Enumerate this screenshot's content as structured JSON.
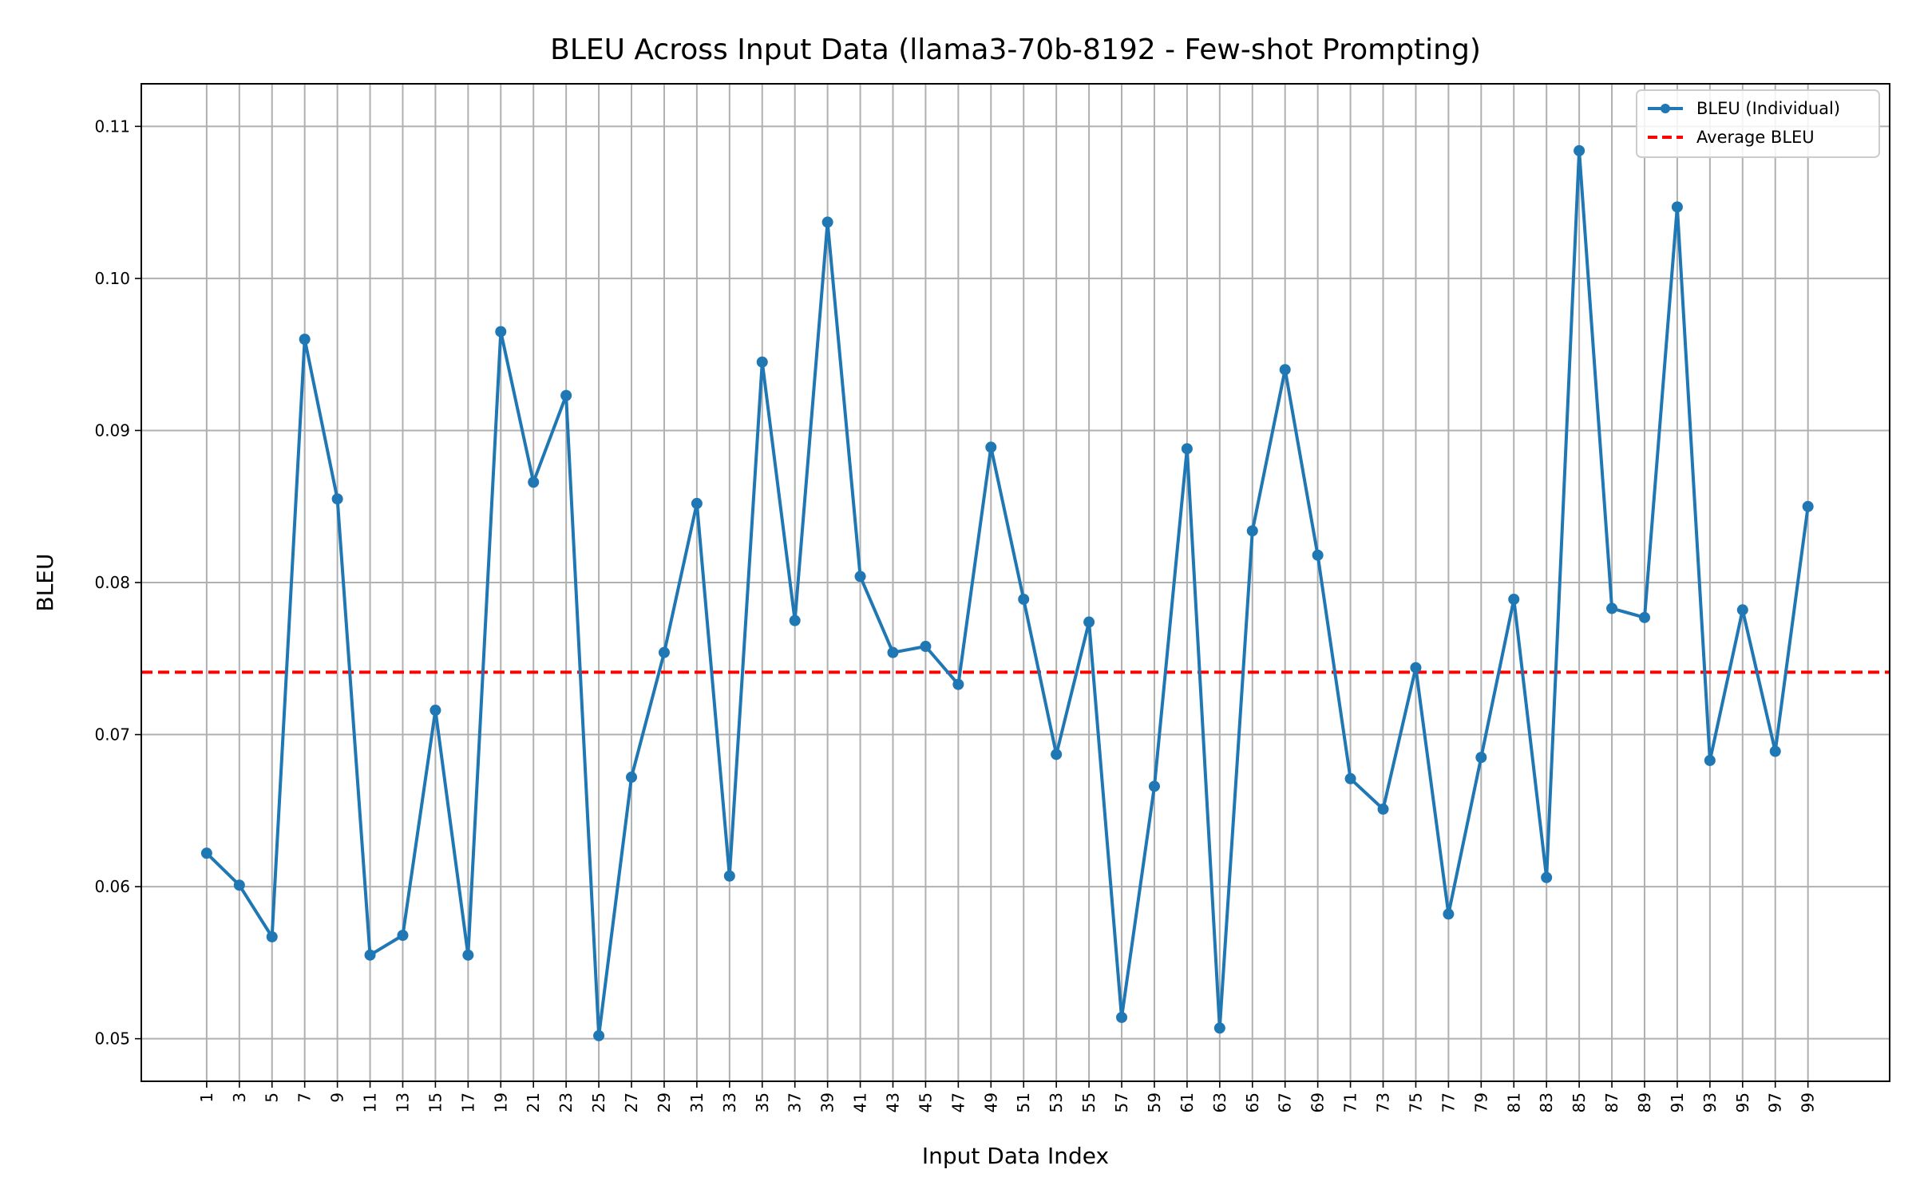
{
  "chart_data": {
    "type": "line",
    "title": "BLEU Across Input Data (llama3-70b-8192 - Few-shot Prompting)",
    "xlabel": "Input Data Index",
    "ylabel": "BLEU",
    "x": [
      1,
      3,
      5,
      7,
      9,
      11,
      13,
      15,
      17,
      19,
      21,
      23,
      25,
      27,
      29,
      31,
      33,
      35,
      37,
      39,
      41,
      43,
      45,
      47,
      49,
      51,
      53,
      55,
      57,
      59,
      61,
      63,
      65,
      67,
      69,
      71,
      73,
      75,
      77,
      79,
      81,
      83,
      85,
      87,
      89,
      91,
      93,
      95,
      97,
      99
    ],
    "xlim": [
      -3,
      104
    ],
    "ylim": [
      0.0472,
      0.1128
    ],
    "yticks": [
      0.05,
      0.06,
      0.07,
      0.08,
      0.09,
      0.1,
      0.11
    ],
    "ytick_labels": [
      "0.05",
      "0.06",
      "0.07",
      "0.08",
      "0.09",
      "0.10",
      "0.11"
    ],
    "grid": true,
    "legend_position": "top-right",
    "series": [
      {
        "name": "BLEU (Individual)",
        "color": "#1f77b4",
        "style": "solid-with-markers",
        "values": [
          0.0622,
          0.0601,
          0.0567,
          0.096,
          0.0855,
          0.0555,
          0.0568,
          0.0716,
          0.0555,
          0.0965,
          0.0866,
          0.0923,
          0.0502,
          0.0672,
          0.0754,
          0.0852,
          0.0607,
          0.0945,
          0.0775,
          0.1037,
          0.0804,
          0.0754,
          0.0758,
          0.0733,
          0.0889,
          0.0789,
          0.0687,
          0.0774,
          0.0514,
          0.0666,
          0.0888,
          0.0507,
          0.0834,
          0.094,
          0.0818,
          0.0671,
          0.0651,
          0.0744,
          0.0582,
          0.0685,
          0.0789,
          0.0606,
          0.1084,
          0.0783,
          0.0777,
          0.1047,
          0.0683,
          0.0782,
          0.0689,
          0.085
        ]
      },
      {
        "name": "Average BLEU",
        "color": "#ff0000",
        "style": "dashed",
        "value": 0.0741
      }
    ]
  }
}
